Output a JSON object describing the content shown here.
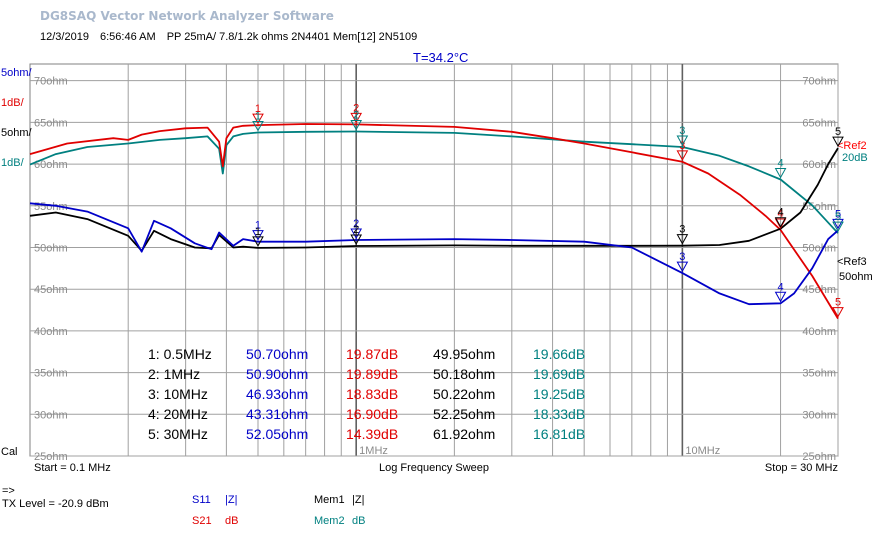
{
  "window": {
    "title": "DG8SAQ Vector Network Analyzer Software"
  },
  "header": {
    "date": "12/3/2019",
    "time": "6:56:46 AM",
    "description": "PP 25mA/ 7.8/1.2k ohms 2N4401 Mem[12] 2N5109"
  },
  "temperature": "T=34.2°C",
  "chart_data": {
    "type": "line",
    "x_scale": "log",
    "xlim_mhz": [
      0.1,
      30
    ],
    "xlabel": "Log Frequency Sweep",
    "start_label": "Start = 0.1 MHz",
    "stop_label": "Stop = 30 MHz",
    "x_tick_labels": [
      "1MHz",
      "10MHz"
    ],
    "grid": true,
    "left_scale_header": [
      "5ohm/",
      "1dB/",
      "5ohm/",
      "1dB/"
    ],
    "ohm_tick_labels": [
      "70ohm",
      "65ohm",
      "60ohm",
      "55ohm",
      "50ohm",
      "45ohm",
      "40ohm",
      "35ohm",
      "30ohm",
      "25ohm"
    ],
    "ohm_ylim": [
      25,
      72
    ],
    "db_ylim": [
      10.5,
      21.6
    ],
    "cal_label": "Cal",
    "ref_labels": [
      {
        "text": "<Ref2",
        "color": "#ff0000"
      },
      {
        "text": "<Ref",
        "color": "#008080"
      },
      {
        "text": "20dB",
        "color": "#008080"
      },
      {
        "text": "<Ref3",
        "color": "#000000"
      },
      {
        "text": "50ohm",
        "color": "#000000"
      }
    ],
    "series": [
      {
        "name": "S11 |Z|",
        "unit": "ohm",
        "color": "#0000c8",
        "x": [
          0.1,
          0.12,
          0.15,
          0.2,
          0.22,
          0.24,
          0.27,
          0.32,
          0.36,
          0.38,
          0.42,
          0.45,
          0.5,
          0.7,
          1,
          2,
          3,
          5,
          7,
          10,
          13,
          16,
          20,
          22,
          25,
          28,
          30
        ],
        "y": [
          55.3,
          55.0,
          54.3,
          52.3,
          49.5,
          53.2,
          52.3,
          50.5,
          49.8,
          51.8,
          50.2,
          51.0,
          50.7,
          50.7,
          50.9,
          51.0,
          50.9,
          50.7,
          50.0,
          46.93,
          44.5,
          43.2,
          43.31,
          44.5,
          47.5,
          51.0,
          52.05
        ]
      },
      {
        "name": "S21 dB",
        "unit": "dB",
        "color": "#e00000",
        "x": [
          0.1,
          0.13,
          0.18,
          0.2,
          0.22,
          0.25,
          0.3,
          0.35,
          0.38,
          0.39,
          0.4,
          0.42,
          0.45,
          0.5,
          0.7,
          1,
          2,
          3,
          4,
          5,
          7,
          10,
          12,
          15,
          18,
          20,
          25,
          30
        ],
        "y": [
          19.05,
          19.35,
          19.5,
          19.45,
          19.6,
          19.7,
          19.78,
          19.8,
          19.4,
          18.7,
          19.5,
          19.8,
          19.85,
          19.87,
          19.9,
          19.89,
          19.82,
          19.68,
          19.5,
          19.35,
          19.1,
          18.83,
          18.5,
          17.9,
          17.3,
          16.9,
          15.6,
          14.39
        ]
      },
      {
        "name": "Mem1 |Z|",
        "unit": "ohm",
        "color": "#000000",
        "x": [
          0.1,
          0.12,
          0.15,
          0.2,
          0.22,
          0.24,
          0.27,
          0.32,
          0.36,
          0.38,
          0.42,
          0.45,
          0.5,
          0.7,
          1,
          2,
          3,
          5,
          7,
          10,
          13,
          16,
          20,
          23,
          26,
          28,
          30
        ],
        "y": [
          53.8,
          54.2,
          53.4,
          51.4,
          49.6,
          52.0,
          51.0,
          50.0,
          49.9,
          51.5,
          50.0,
          50.1,
          49.95,
          50.0,
          50.18,
          50.25,
          50.2,
          50.2,
          50.2,
          50.22,
          50.3,
          50.8,
          52.25,
          54.2,
          57.5,
          60.0,
          61.92
        ]
      },
      {
        "name": "Mem2 dB",
        "unit": "dB",
        "color": "#008080",
        "x": [
          0.1,
          0.12,
          0.15,
          0.2,
          0.25,
          0.3,
          0.35,
          0.38,
          0.39,
          0.4,
          0.42,
          0.45,
          0.5,
          0.7,
          1,
          2,
          3,
          5,
          7,
          10,
          13,
          16,
          20,
          25,
          30
        ],
        "y": [
          18.75,
          19.05,
          19.25,
          19.35,
          19.45,
          19.5,
          19.55,
          19.2,
          18.5,
          19.3,
          19.55,
          19.62,
          19.66,
          19.68,
          19.69,
          19.65,
          19.55,
          19.4,
          19.33,
          19.25,
          19.0,
          18.7,
          18.33,
          17.6,
          16.81
        ]
      }
    ],
    "markers": [
      {
        "label": "1",
        "freq_label": "0.5MHz",
        "f": 0.5,
        "values": [
          "50.70ohm",
          "19.87dB",
          "49.95ohm",
          "19.66dB"
        ]
      },
      {
        "label": "2",
        "freq_label": "1MHz",
        "f": 1,
        "values": [
          "50.90ohm",
          "19.89dB",
          "50.18ohm",
          "19.69dB"
        ]
      },
      {
        "label": "3",
        "freq_label": "10MHz",
        "f": 10,
        "values": [
          "46.93ohm",
          "18.83dB",
          "50.22ohm",
          "19.25dB"
        ]
      },
      {
        "label": "4",
        "freq_label": "20MHz",
        "f": 20,
        "values": [
          "43.31ohm",
          "16.90dB",
          "52.25ohm",
          "18.33dB"
        ]
      },
      {
        "label": "5",
        "freq_label": "30MHz",
        "f": 30,
        "values": [
          "52.05ohm",
          "14.39dB",
          "61.92ohm",
          "16.81dB"
        ]
      }
    ]
  },
  "footer": {
    "arrow": "=>",
    "tx_level": "TX Level = -20.9 dBm",
    "legend": [
      {
        "code": "S11",
        "unit": "|Z|",
        "color": "#0000c8"
      },
      {
        "code": "S21",
        "unit": "dB",
        "color": "#e00000"
      },
      {
        "code": "Mem1",
        "unit": "|Z|",
        "color": "#000000"
      },
      {
        "code": "Mem2",
        "unit": "dB",
        "color": "#008080"
      }
    ]
  }
}
